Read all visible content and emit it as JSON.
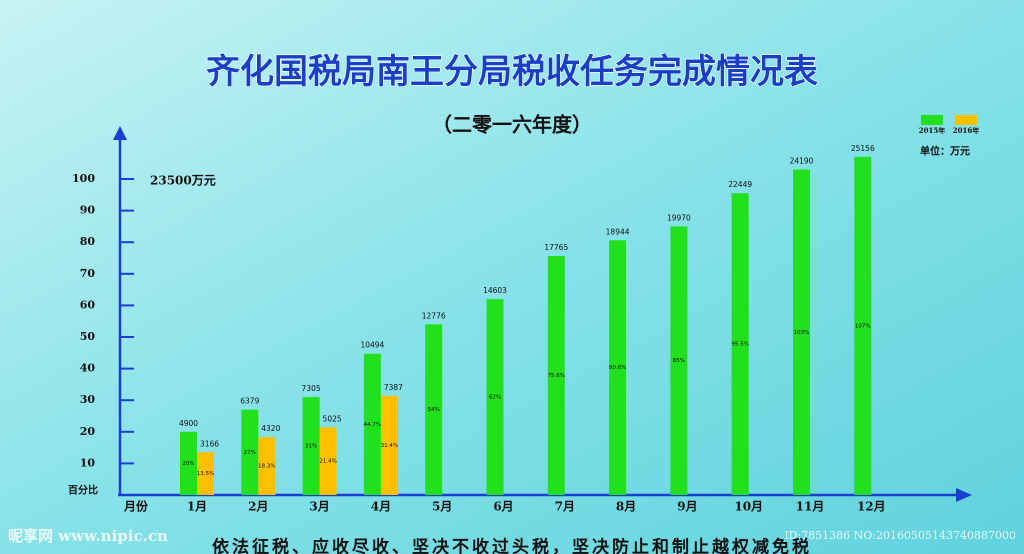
{
  "chart_data": {
    "type": "bar",
    "title": "齐化国税局南王分局税收任务完成情况表",
    "subtitle": "（二零一六年度）",
    "unit": "单位：万元",
    "annotation": "23500万元",
    "ylabel": "百分比",
    "xlabel": "月份",
    "slogan": "依法征税、应收尽收、坚决不收过头税，坚决防止和制止越权减免税",
    "watermark": "昵享网 www.nipic.cn",
    "watermark_id": "ID:7851386 NO:20160505143740887000",
    "categories": [
      "1月",
      "2月",
      "3月",
      "4月",
      "5月",
      "6月",
      "7月",
      "8月",
      "9月",
      "10月",
      "11月",
      "12月"
    ],
    "series": [
      {
        "name": "2015年",
        "color": "#22e01e",
        "values": [
          20,
          27,
          31,
          44.7,
          54,
          62,
          75.6,
          80.6,
          85,
          95.5,
          103,
          107
        ],
        "value_labels": [
          "20%",
          "27%",
          "31%",
          "44.7%",
          "54%",
          "62%",
          "75.6%",
          "80.6%",
          "85%",
          "95.5%",
          "103%",
          "107%"
        ],
        "amounts": [
          4900,
          6379,
          7305,
          10494,
          12776,
          14603,
          17765,
          18944,
          19970,
          22449,
          24190,
          25156
        ]
      },
      {
        "name": "2016年",
        "color": "#ffc000",
        "values": [
          13.5,
          18.3,
          21.4,
          31.4,
          null,
          null,
          null,
          null,
          null,
          null,
          null,
          null
        ],
        "value_labels": [
          "13.5%",
          "18.3%",
          "21.4%",
          "31.4%",
          null,
          null,
          null,
          null,
          null,
          null,
          null,
          null
        ],
        "amounts": [
          3166,
          4320,
          5025,
          7387,
          null,
          null,
          null,
          null,
          null,
          null,
          null,
          null
        ]
      }
    ],
    "ylim": [
      0,
      115
    ],
    "yticks": [
      10,
      20,
      30,
      40,
      50,
      60,
      70,
      80,
      90,
      100
    ]
  }
}
